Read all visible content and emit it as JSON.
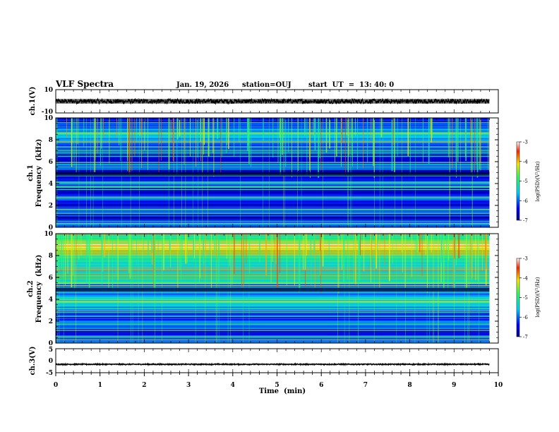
{
  "header": {
    "title": "VLF Spectra",
    "date": "Jan. 19, 2026",
    "station": "station=OUJ",
    "start": "start  UT  =  13: 40: 0"
  },
  "colorbar_label": "log(PSD)(V²/Hz)",
  "colors": {
    "trace": "#000000",
    "spectrogram_background": "#0a1f8f",
    "ch2_band": "#48b8d8"
  },
  "chart_data": [
    {
      "type": "line",
      "name": "ch.1 waveform",
      "ylabel": "ch.1(V)",
      "ylim": [
        -10,
        10
      ],
      "y_ticks": [
        "10",
        "-10"
      ],
      "x": [
        0,
        9.8
      ],
      "y_center": 0,
      "amplitude_range": [
        -2,
        2
      ]
    },
    {
      "type": "heatmap",
      "name": "ch.1 spectrogram",
      "ylabel_lines": [
        "ch.1",
        "Frequency  (kHz)"
      ],
      "xlim": [
        0,
        10
      ],
      "ylim": [
        0,
        10
      ],
      "y_ticks": [
        "0",
        "2",
        "4",
        "6",
        "8",
        "10"
      ],
      "time_end": 9.8,
      "colorbar": {
        "min": -7,
        "max": -3,
        "ticks": [
          "-3",
          "-4",
          "-5",
          "-6",
          "-7"
        ]
      }
    },
    {
      "type": "heatmap",
      "name": "ch.2 spectrogram",
      "ylabel_lines": [
        "ch.2",
        "Frequency  (kHz)"
      ],
      "xlim": [
        0,
        10
      ],
      "ylim": [
        0,
        10
      ],
      "y_ticks": [
        "0",
        "2",
        "4",
        "6",
        "8",
        "10"
      ],
      "time_end": 9.8,
      "colorbar": {
        "min": -7,
        "max": -3,
        "ticks": [
          "-3",
          "-4",
          "-5",
          "-6",
          "-7"
        ]
      }
    },
    {
      "type": "line",
      "name": "ch.3 waveform",
      "ylabel": "ch.3(V)",
      "ylim": [
        -5,
        5
      ],
      "y_ticks": [
        "5",
        "0",
        "-5"
      ],
      "x": [
        0,
        9.8
      ],
      "y_center": -1.5,
      "amplitude_range": [
        -1.8,
        -1.2
      ]
    }
  ],
  "x_axis": {
    "label": "Time  (min)",
    "ticks": [
      "0",
      "1",
      "2",
      "3",
      "4",
      "5",
      "6",
      "7",
      "8",
      "9",
      "10"
    ]
  }
}
